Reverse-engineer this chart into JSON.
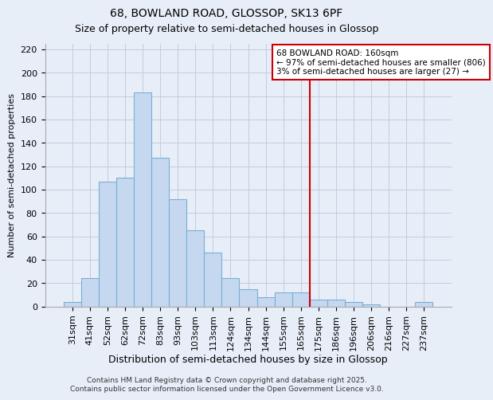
{
  "title": "68, BOWLAND ROAD, GLOSSOP, SK13 6PF",
  "subtitle": "Size of property relative to semi-detached houses in Glossop",
  "xlabel": "Distribution of semi-detached houses by size in Glossop",
  "ylabel": "Number of semi-detached properties",
  "bar_labels": [
    "31sqm",
    "41sqm",
    "52sqm",
    "62sqm",
    "72sqm",
    "83sqm",
    "93sqm",
    "103sqm",
    "113sqm",
    "124sqm",
    "134sqm",
    "144sqm",
    "155sqm",
    "165sqm",
    "175sqm",
    "186sqm",
    "196sqm",
    "206sqm",
    "216sqm",
    "227sqm",
    "237sqm"
  ],
  "bar_values": [
    4,
    24,
    107,
    110,
    183,
    127,
    92,
    65,
    46,
    24,
    15,
    8,
    12,
    12,
    6,
    6,
    4,
    2,
    0,
    0,
    4
  ],
  "bar_color": "#c5d8f0",
  "bar_edge_color": "#7aafd4",
  "vline_x": 13.5,
  "vline_color": "#cc0000",
  "annotation_title": "68 BOWLAND ROAD: 160sqm",
  "annotation_line1": "← 97% of semi-detached houses are smaller (806)",
  "annotation_line2": "3% of semi-detached houses are larger (27) →",
  "annotation_box_facecolor": "#ffffff",
  "annotation_box_edge": "#cc0000",
  "ylim": [
    0,
    225
  ],
  "yticks": [
    0,
    20,
    40,
    60,
    80,
    100,
    120,
    140,
    160,
    180,
    200,
    220
  ],
  "footer_line1": "Contains HM Land Registry data © Crown copyright and database right 2025.",
  "footer_line2": "Contains public sector information licensed under the Open Government Licence v3.0.",
  "bg_color": "#e8eef8",
  "grid_color": "#c0cce0",
  "title_fontsize": 10,
  "subtitle_fontsize": 9,
  "xlabel_fontsize": 9,
  "ylabel_fontsize": 8,
  "tick_fontsize": 8,
  "ann_fontsize": 7.5,
  "footer_fontsize": 6.5
}
